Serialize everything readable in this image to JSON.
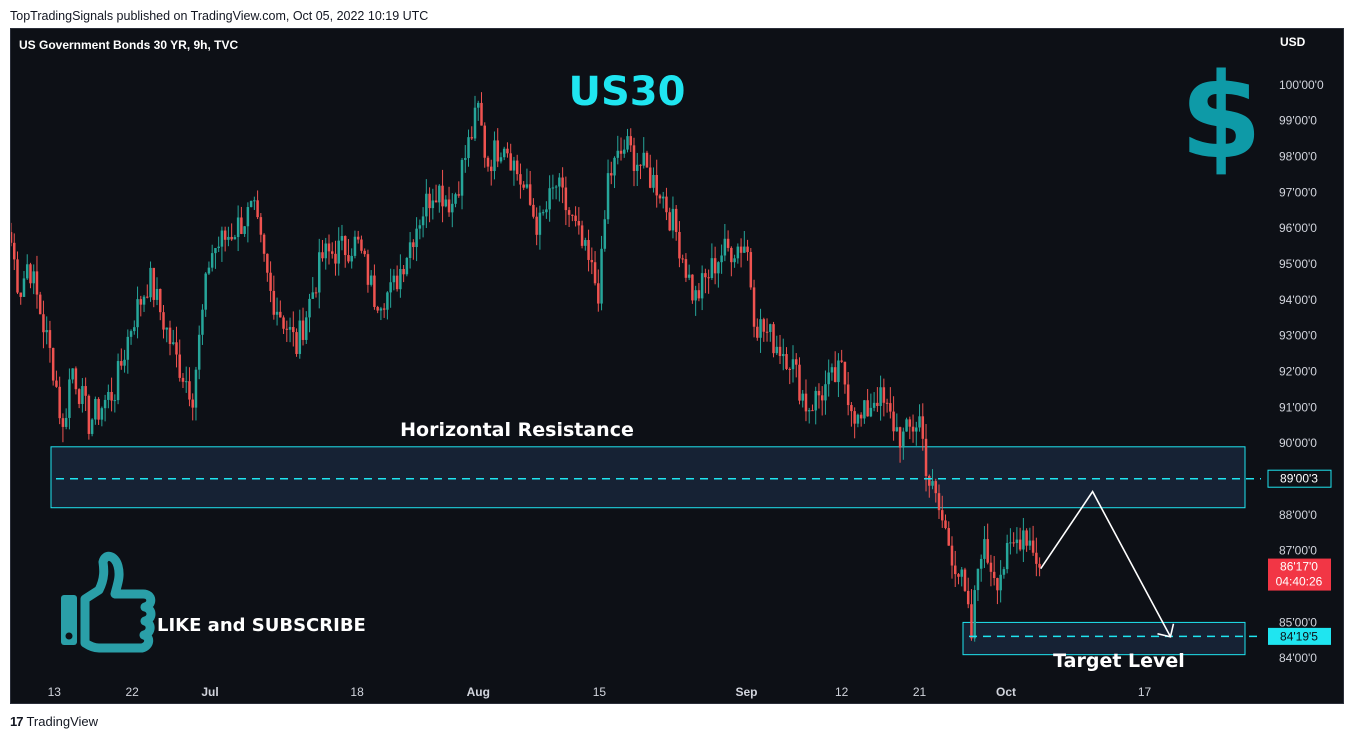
{
  "header": {
    "publisher_line": "TopTradingSignals published on TradingView.com, Oct 05, 2022 10:19 UTC"
  },
  "chart": {
    "symbol_title": "US Government Bonds 30 YR, 9h, TVC",
    "currency": "USD"
  },
  "annotations": {
    "big_title": "US30",
    "resistance_label": "Horizontal Resistance",
    "target_label": "Target Level",
    "cta_label": "LIKE and SUBSCRIBE"
  },
  "price_badges": {
    "resistance_level": "89'00'3",
    "target_level": "84'19'5",
    "last_price": "86'17'0",
    "countdown": "04:40:26"
  },
  "footer": {
    "brand": "TradingView",
    "logo_glyph": "17"
  },
  "colors": {
    "background": "#0d1016",
    "up_candle": "#26a69a",
    "down_candle": "#ef5350",
    "accent": "#1fe5f0",
    "dollar": "#0e9aa7",
    "thumb": "#2a9fa8",
    "last_price_badge": "#f23645"
  },
  "chart_data": {
    "type": "candlestick",
    "title": "US30",
    "y_unit": "USD",
    "ylim": [
      83.7,
      101.0
    ],
    "y_ticks": [
      {
        "value": 84,
        "label": "84'00'0"
      },
      {
        "value": 85,
        "label": "85'00'0"
      },
      {
        "value": 87,
        "label": "87'00'0"
      },
      {
        "value": 88,
        "label": "88'00'0"
      },
      {
        "value": 90,
        "label": "90'00'0"
      },
      {
        "value": 91,
        "label": "91'00'0"
      },
      {
        "value": 92,
        "label": "92'00'0"
      },
      {
        "value": 93,
        "label": "93'00'0"
      },
      {
        "value": 94,
        "label": "94'00'0"
      },
      {
        "value": 95,
        "label": "95'00'0"
      },
      {
        "value": 96,
        "label": "96'00'0"
      },
      {
        "value": 97,
        "label": "97'00'0"
      },
      {
        "value": 98,
        "label": "98'00'0"
      },
      {
        "value": 99,
        "label": "99'00'0"
      },
      {
        "value": 100,
        "label": "100'00'0"
      }
    ],
    "x_ticks": [
      {
        "date": "2022-06-13",
        "label": "13"
      },
      {
        "date": "2022-06-22",
        "label": "22"
      },
      {
        "date": "2022-07-01",
        "label": "Jul"
      },
      {
        "date": "2022-07-18",
        "label": "18"
      },
      {
        "date": "2022-08-01",
        "label": "Aug"
      },
      {
        "date": "2022-08-15",
        "label": "15"
      },
      {
        "date": "2022-09-01",
        "label": "Sep"
      },
      {
        "date": "2022-09-12",
        "label": "12"
      },
      {
        "date": "2022-09-21",
        "label": "21"
      },
      {
        "date": "2022-10-01",
        "label": "Oct"
      },
      {
        "date": "2022-10-17",
        "label": "17"
      }
    ],
    "x_range": [
      "2022-06-08",
      "2022-10-30"
    ],
    "price_path": [
      {
        "date": "2022-06-08",
        "price": 95.6
      },
      {
        "date": "2022-06-09",
        "price": 94.2
      },
      {
        "date": "2022-06-10",
        "price": 95.1
      },
      {
        "date": "2022-06-13",
        "price": 92.0
      },
      {
        "date": "2022-06-14",
        "price": 90.3
      },
      {
        "date": "2022-06-15",
        "price": 92.2
      },
      {
        "date": "2022-06-17",
        "price": 90.6
      },
      {
        "date": "2022-06-20",
        "price": 91.5
      },
      {
        "date": "2022-06-22",
        "price": 93.4
      },
      {
        "date": "2022-06-24",
        "price": 94.6
      },
      {
        "date": "2022-06-27",
        "price": 92.4
      },
      {
        "date": "2022-06-29",
        "price": 91.4
      },
      {
        "date": "2022-07-01",
        "price": 95.3
      },
      {
        "date": "2022-07-06",
        "price": 96.5
      },
      {
        "date": "2022-07-08",
        "price": 94.2
      },
      {
        "date": "2022-07-11",
        "price": 92.7
      },
      {
        "date": "2022-07-14",
        "price": 95.2
      },
      {
        "date": "2022-07-18",
        "price": 95.6
      },
      {
        "date": "2022-07-20",
        "price": 94.1
      },
      {
        "date": "2022-07-22",
        "price": 94.2
      },
      {
        "date": "2022-07-25",
        "price": 96.2
      },
      {
        "date": "2022-07-27",
        "price": 97.2
      },
      {
        "date": "2022-07-29",
        "price": 96.7
      },
      {
        "date": "2022-08-01",
        "price": 99.3
      },
      {
        "date": "2022-08-02",
        "price": 97.8
      },
      {
        "date": "2022-08-04",
        "price": 98.5
      },
      {
        "date": "2022-08-08",
        "price": 96.0
      },
      {
        "date": "2022-08-10",
        "price": 97.2
      },
      {
        "date": "2022-08-12",
        "price": 96.1
      },
      {
        "date": "2022-08-15",
        "price": 94.2
      },
      {
        "date": "2022-08-16",
        "price": 97.4
      },
      {
        "date": "2022-08-18",
        "price": 98.3
      },
      {
        "date": "2022-08-22",
        "price": 97.1
      },
      {
        "date": "2022-08-24",
        "price": 95.8
      },
      {
        "date": "2022-08-26",
        "price": 94.0
      },
      {
        "date": "2022-08-29",
        "price": 95.3
      },
      {
        "date": "2022-09-01",
        "price": 95.6
      },
      {
        "date": "2022-09-02",
        "price": 93.4
      },
      {
        "date": "2022-09-06",
        "price": 92.4
      },
      {
        "date": "2022-09-08",
        "price": 91.0
      },
      {
        "date": "2022-09-12",
        "price": 92.0
      },
      {
        "date": "2022-09-14",
        "price": 90.5
      },
      {
        "date": "2022-09-16",
        "price": 91.4
      },
      {
        "date": "2022-09-19",
        "price": 90.1
      },
      {
        "date": "2022-09-21",
        "price": 90.7
      },
      {
        "date": "2022-09-22",
        "price": 89.0
      },
      {
        "date": "2022-09-23",
        "price": 88.3
      },
      {
        "date": "2022-09-26",
        "price": 86.0
      },
      {
        "date": "2022-09-27",
        "price": 84.6
      },
      {
        "date": "2022-09-28",
        "price": 87.2
      },
      {
        "date": "2022-09-30",
        "price": 86.3
      },
      {
        "date": "2022-10-03",
        "price": 87.6
      },
      {
        "date": "2022-10-04",
        "price": 87.2
      },
      {
        "date": "2022-10-05",
        "price": 86.53
      }
    ],
    "resistance_zone": {
      "low": 88.2,
      "high": 89.9,
      "level": 89.01
    },
    "target_zone": {
      "low": 84.1,
      "high": 85.0,
      "level": 84.61
    },
    "projection_path": [
      {
        "date": "2022-10-05",
        "price": 86.5
      },
      {
        "date": "2022-10-11",
        "price": 88.65
      },
      {
        "date": "2022-10-20",
        "price": 84.6
      }
    ],
    "last_price": 86.53
  }
}
